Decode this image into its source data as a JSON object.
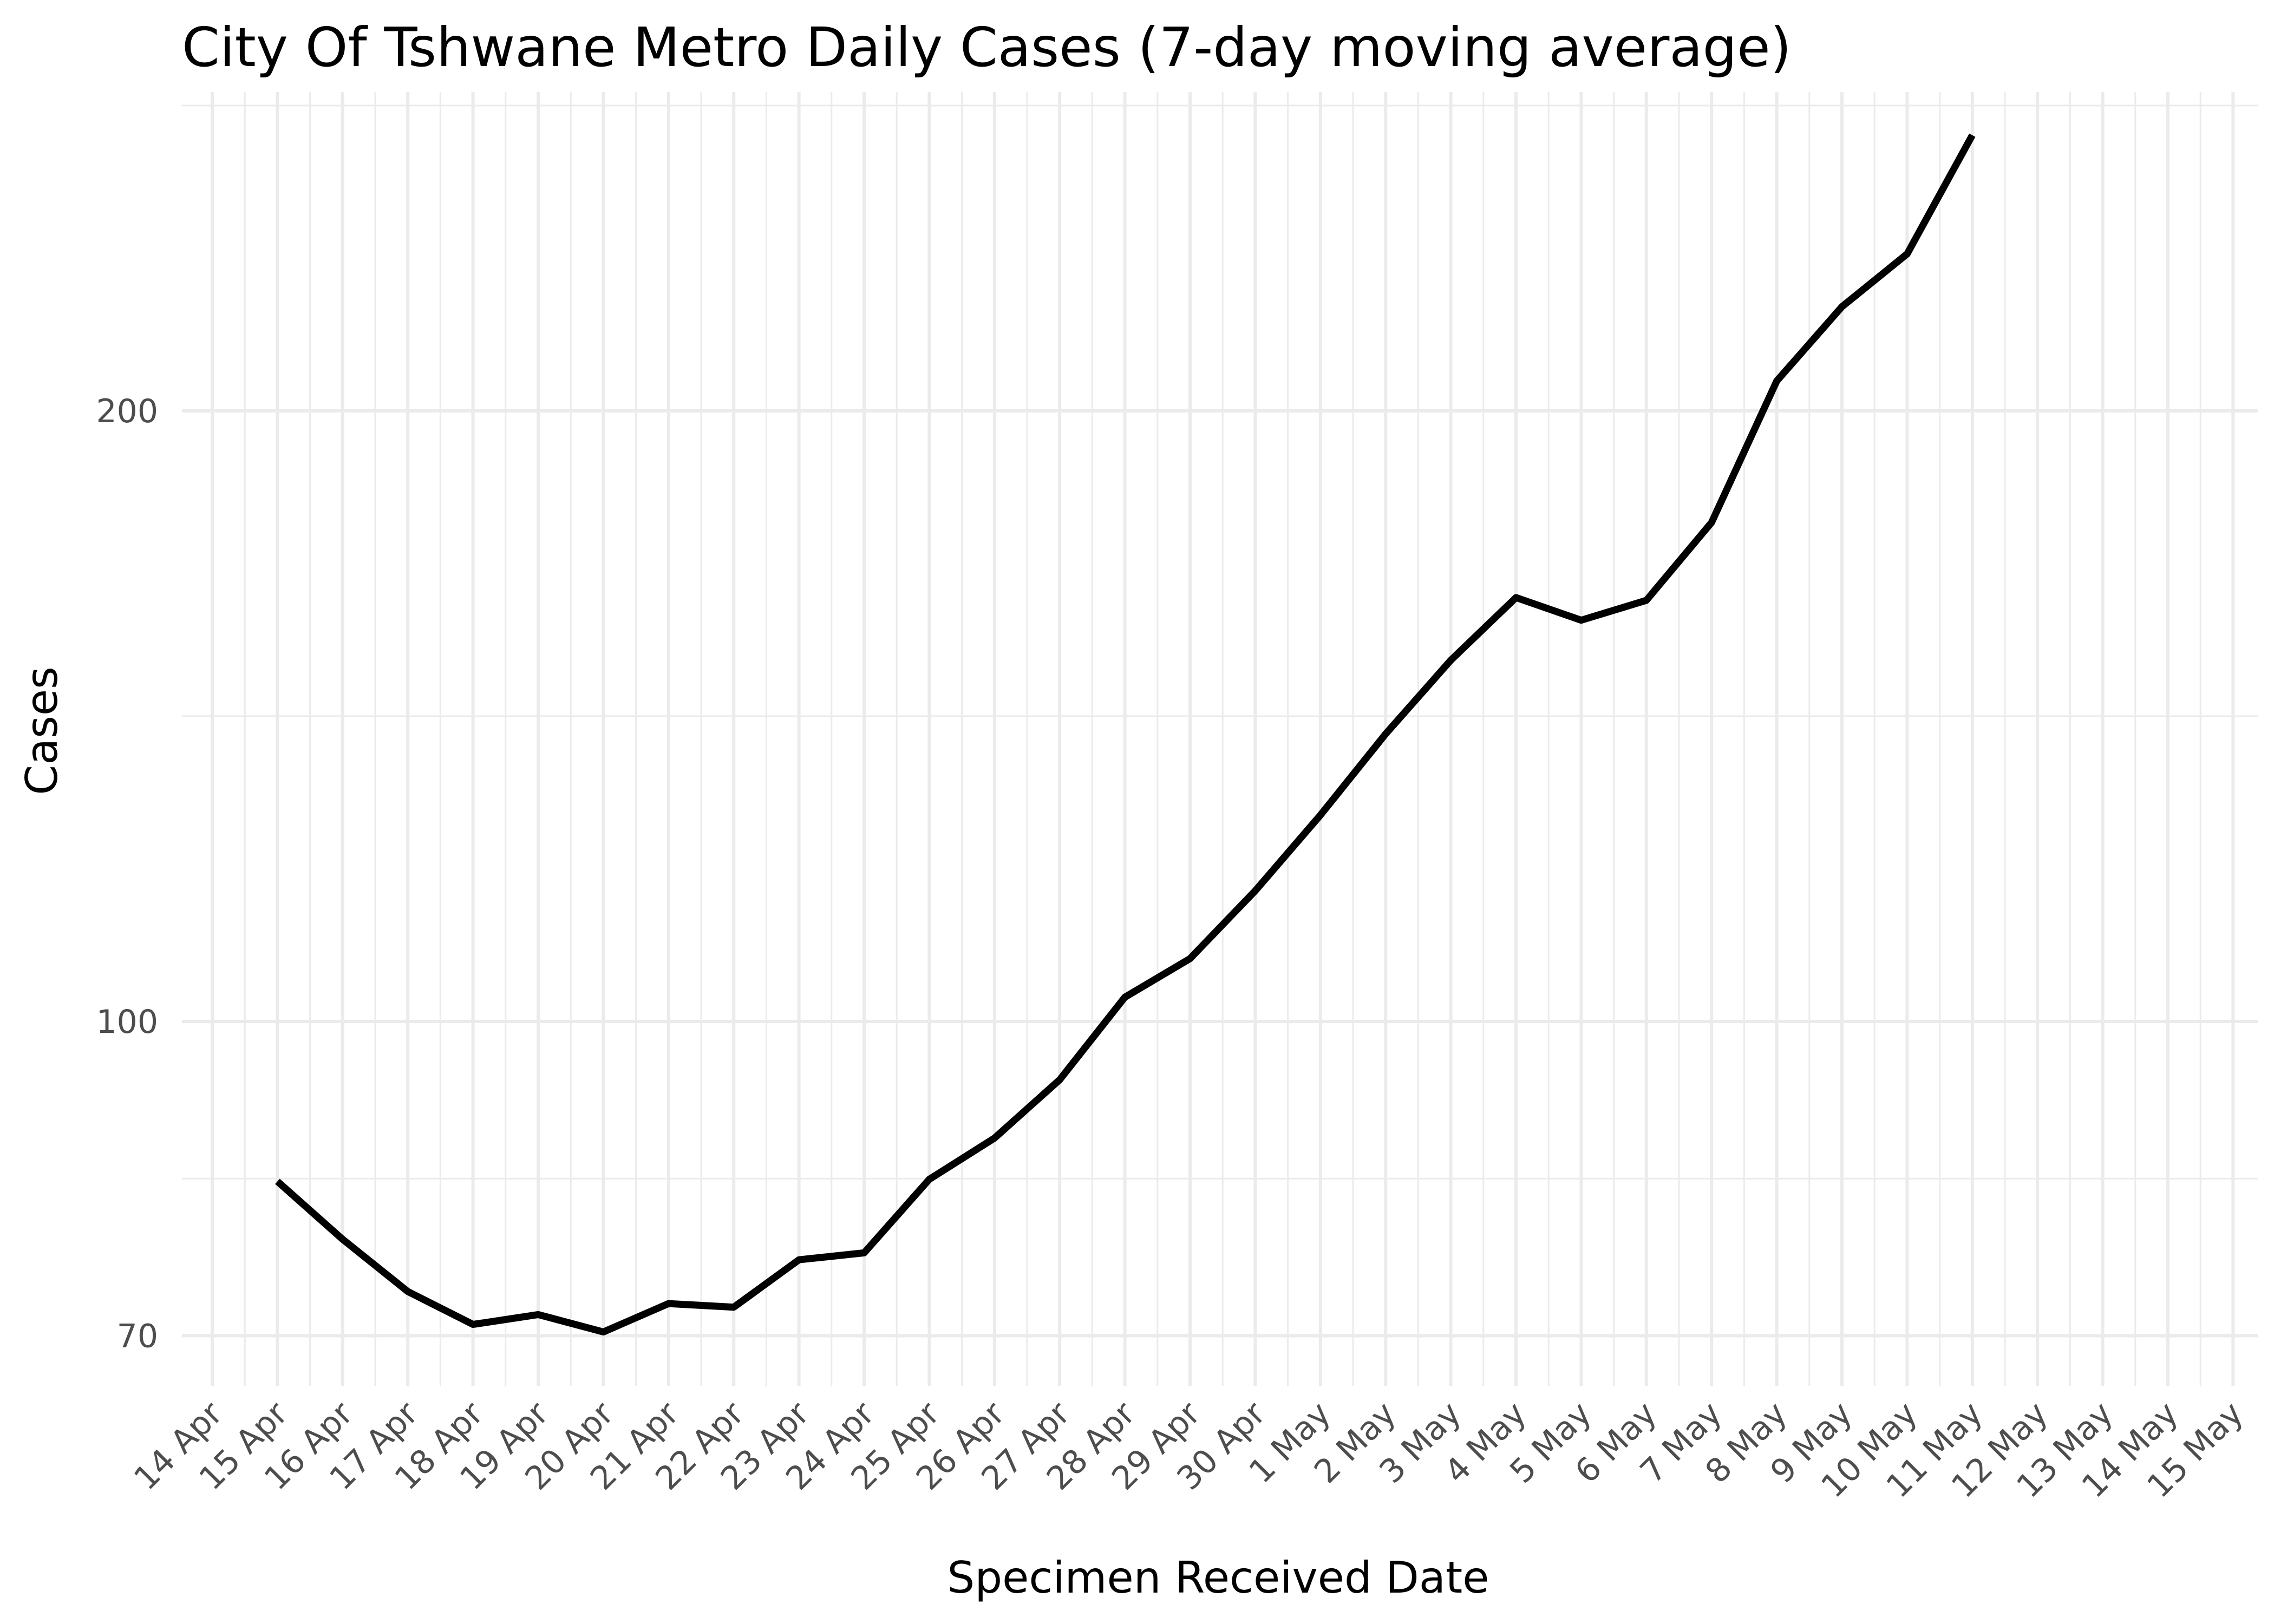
{
  "chart_data": {
    "type": "line",
    "title": "City Of Tshwane Metro Daily Cases (7-day moving average)",
    "xlabel": "Specimen Received Date",
    "ylabel": "Cases",
    "y_scale": "log",
    "x_range": [
      "14 Apr",
      "15 May"
    ],
    "y_ticks": [
      70,
      100,
      200
    ],
    "y_tick_labels": [
      "70",
      "100",
      "200"
    ],
    "x_tick_labels": [
      "14 Apr",
      "15 Apr",
      "16 Apr",
      "17 Apr",
      "18 Apr",
      "19 Apr",
      "20 Apr",
      "21 Apr",
      "22 Apr",
      "23 Apr",
      "24 Apr",
      "25 Apr",
      "26 Apr",
      "27 Apr",
      "28 Apr",
      "29 Apr",
      "30 Apr",
      "1 May",
      "2 May",
      "3 May",
      "4 May",
      "5 May",
      "6 May",
      "7 May",
      "8 May",
      "9 May",
      "10 May",
      "11 May",
      "12 May",
      "13 May",
      "14 May",
      "15 May"
    ],
    "grid": true,
    "legend": "none",
    "line_color": "#000000",
    "series": [
      {
        "x": [
          "15 Apr",
          "16 Apr",
          "17 Apr",
          "18 Apr",
          "19 Apr",
          "20 Apr",
          "21 Apr",
          "22 Apr",
          "23 Apr",
          "24 Apr",
          "25 Apr",
          "26 Apr",
          "27 Apr",
          "28 Apr",
          "29 Apr",
          "30 Apr",
          "1 May",
          "2 May",
          "3 May",
          "4 May",
          "5 May",
          "6 May",
          "7 May",
          "8 May",
          "9 May",
          "10 May",
          "11 May"
        ],
        "values": [
          83.4,
          78.1,
          73.6,
          70.9,
          71.7,
          70.3,
          72.6,
          72.3,
          76.3,
          76.9,
          83.6,
          87.6,
          93.6,
          102.8,
          107.4,
          116.0,
          126.4,
          138.6,
          150.7,
          161.8,
          157.7,
          161.3,
          176.2,
          206.9,
          225.1,
          239.0,
          273.5
        ]
      }
    ]
  }
}
